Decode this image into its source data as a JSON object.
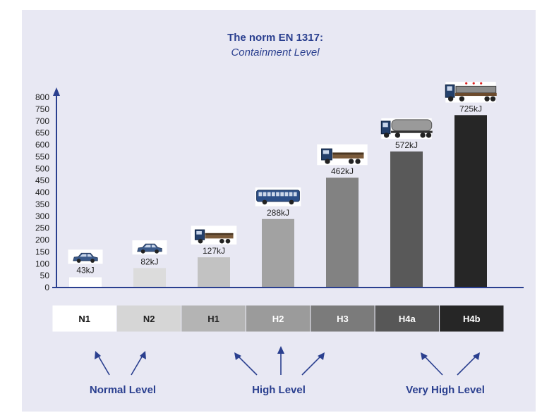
{
  "chart_data": {
    "type": "bar",
    "title": "The norm EN 1317:",
    "subtitle": "Containment Level",
    "ylim": [
      0,
      800
    ],
    "yticks": [
      0,
      50,
      100,
      150,
      200,
      250,
      300,
      350,
      400,
      450,
      500,
      550,
      600,
      650,
      700,
      750,
      800
    ],
    "categories": [
      "N1",
      "N2",
      "H1",
      "H2",
      "H3",
      "H4a",
      "H4b"
    ],
    "values": [
      43,
      82,
      127,
      288,
      462,
      572,
      725
    ],
    "value_labels": [
      "43kJ",
      "82kJ",
      "127kJ",
      "288kJ",
      "462kJ",
      "572kJ",
      "725kJ"
    ],
    "vehicles": [
      "car-icon",
      "car-icon",
      "truck-icon",
      "bus-icon",
      "truck-icon",
      "tanker-truck-icon",
      "articulated-truck-icon"
    ],
    "level_colors": [
      "#ffffff",
      "#d6d6d6",
      "#b4b4b4",
      "#9b9b9b",
      "#7b7b7b",
      "#575757",
      "#262626"
    ],
    "bar_colors": [
      "#ffffff",
      "#dcdcdc",
      "#c2c2c2",
      "#a2a2a2",
      "#828282",
      "#595959",
      "#262626"
    ],
    "label_colors": [
      "#111111",
      "#222222",
      "#222222",
      "#ffffff",
      "#ffffff",
      "#ffffff",
      "#ffffff"
    ],
    "groups": [
      "Normal Level",
      "High Level",
      "Very High Level"
    ],
    "accent": "#2a3f8f",
    "grid": false
  }
}
